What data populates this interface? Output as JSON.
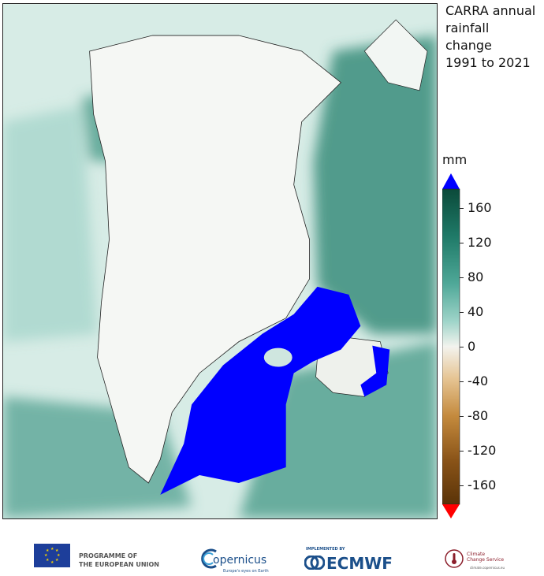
{
  "title_lines": [
    "CARRA annual",
    "rainfall",
    "change",
    "1991 to 2021"
  ],
  "colorbar": {
    "unit": "mm",
    "ticks": [
      "160",
      "120",
      "80",
      "40",
      "0",
      "-40",
      "-80",
      "-120",
      "-160"
    ],
    "colors": [
      "#0b4a3a",
      "#1f7a68",
      "#4fa898",
      "#9fd4c9",
      "#f3f3ee",
      "#e6c594",
      "#c48a3d",
      "#8a5418",
      "#5a3308"
    ],
    "extend_high_color": "#0000ff",
    "extend_low_color": "#ff0000"
  },
  "map": {
    "land_color": "#f4f7f4",
    "ocean_color": "#b7ddd5",
    "max_exceed_color": "#0000ff"
  },
  "footer": {
    "eu_line1": "PROGRAMME OF",
    "eu_line2": "THE EUROPEAN UNION",
    "copernicus": "opernicus",
    "copernicus_tag": "Europe's eyes on Earth",
    "ecmwf_tag": "IMPLEMENTED BY",
    "ecmwf": "ECMWF",
    "c3s_line1": "Climate",
    "c3s_line2": "Change Service",
    "c3s_url": "climate.copernicus.eu"
  }
}
